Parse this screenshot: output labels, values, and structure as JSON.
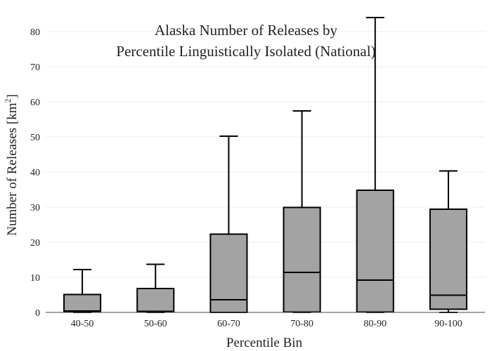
{
  "chart_data": {
    "type": "box",
    "title_lines": [
      "Alaska Number of Releases by",
      "Percentile Linguistically Isolated (National)"
    ],
    "xlabel": "Percentile Bin",
    "ylabel": "Number of Releases  [km",
    "ylabel_sup": "2",
    "ylabel_close": "]",
    "ylim": [
      0,
      84
    ],
    "yticks": [
      0,
      10,
      20,
      30,
      40,
      50,
      60,
      70,
      80
    ],
    "grid": true,
    "categories": [
      "40-50",
      "50-60",
      "60-70",
      "70-80",
      "80-90",
      "90-100"
    ],
    "boxes": [
      {
        "category": "40-50",
        "min": 0.0,
        "q1": 0.1,
        "median": 0.4,
        "q3": 5.1,
        "max": 12.2
      },
      {
        "category": "50-60",
        "min": 0.0,
        "q1": 0.1,
        "median": 0.3,
        "q3": 6.8,
        "max": 13.7
      },
      {
        "category": "60-70",
        "min": 0.0,
        "q1": 0.0,
        "median": 3.6,
        "q3": 22.3,
        "max": 50.2
      },
      {
        "category": "70-80",
        "min": 0.0,
        "q1": 0.1,
        "median": 11.4,
        "q3": 29.9,
        "max": 57.4
      },
      {
        "category": "80-90",
        "min": 0.0,
        "q1": 0.1,
        "median": 9.2,
        "q3": 34.8,
        "max": 84.0
      },
      {
        "category": "90-100",
        "min": 0.0,
        "q1": 0.9,
        "median": 4.9,
        "q3": 29.4,
        "max": 40.3
      }
    ],
    "colors": {
      "box_fill": "#a3a3a3",
      "box_stroke": "#000000",
      "grid": "#eeeeee"
    }
  }
}
